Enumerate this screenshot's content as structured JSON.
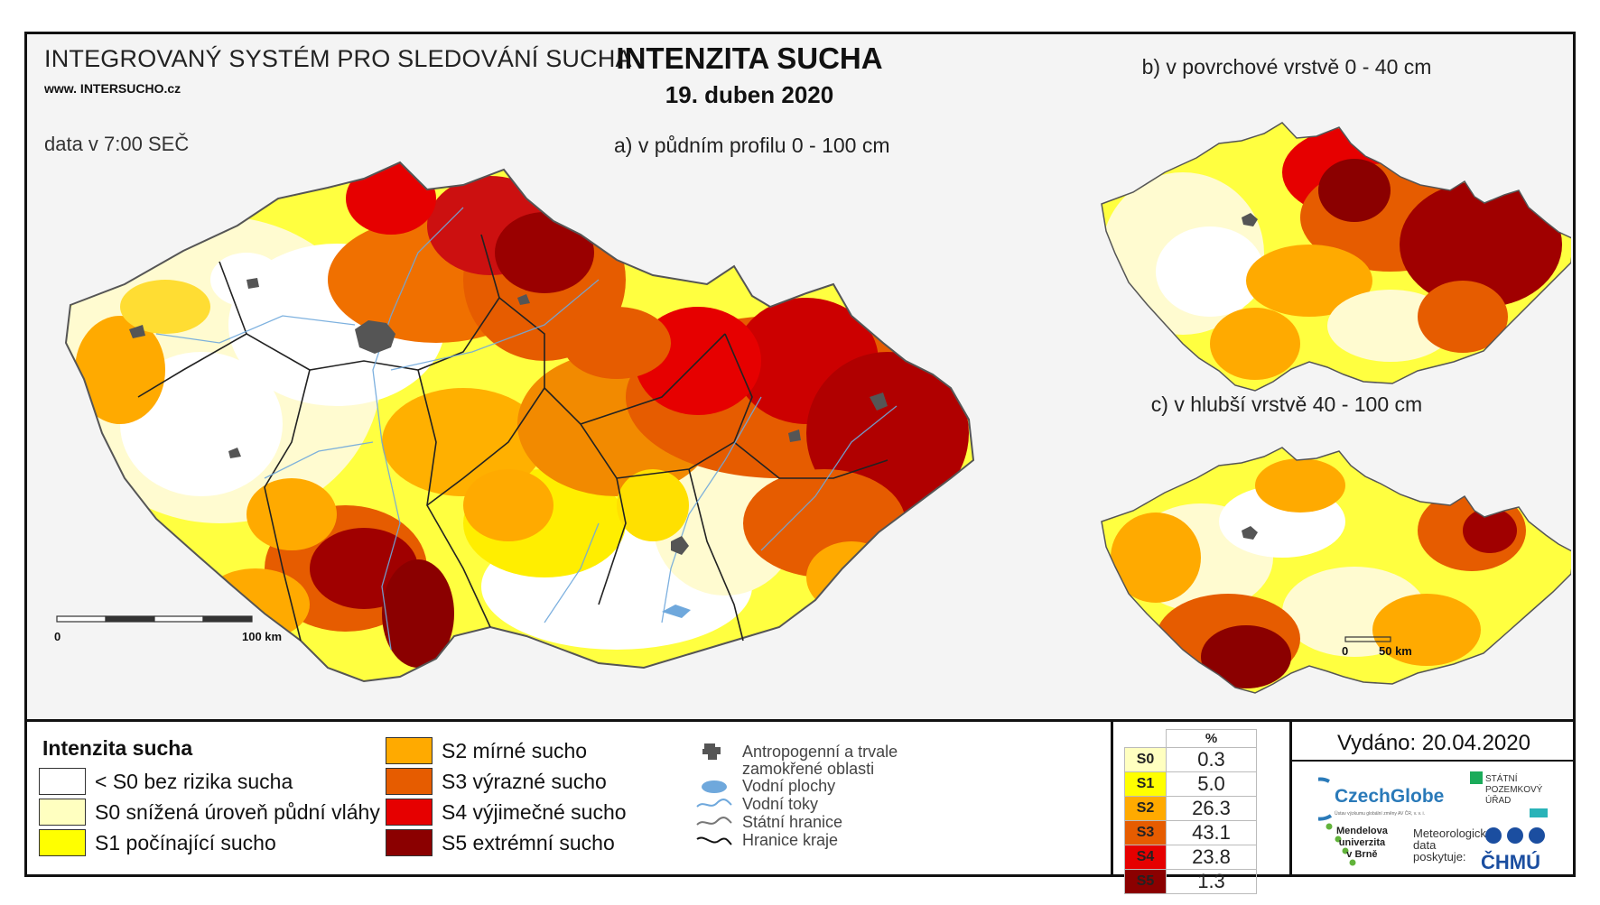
{
  "header": {
    "system_title": "INTEGROVANÝ SYSTÉM PRO SLEDOVÁNÍ SUCHA",
    "website": "www. INTERSUCHO.cz",
    "data_time": "data v 7:00 SEČ",
    "main_title": "INTENZITA SUCHA",
    "date": "19. duben 2020"
  },
  "maps": {
    "a_title": "a) v půdním profilu 0 - 100 cm",
    "b_title": "b) v povrchové vrstvě 0 - 40 cm",
    "c_title": "c) v hlubší vrstvě 40 - 100 cm",
    "scale_main": {
      "start": "0",
      "end": "100 km"
    },
    "scale_small": {
      "start": "0",
      "end": "50 km"
    }
  },
  "legend": {
    "title": "Intenzita sucha",
    "classes": [
      {
        "label": "< S0 bez rizika sucha",
        "color": "#ffffff"
      },
      {
        "label": "S0 snížená úroveň půdní vláhy",
        "color": "#ffffc0"
      },
      {
        "label": "S1 počínající sucho",
        "color": "#ffff00"
      },
      {
        "label": "S2 mírné sucho",
        "color": "#ffaa00"
      },
      {
        "label": "S3 výrazné sucho",
        "color": "#e65c00"
      },
      {
        "label": "S4 výjimečné sucho",
        "color": "#e60000"
      },
      {
        "label": "S5 extrémní sucho",
        "color": "#8b0000"
      }
    ],
    "symbols": [
      {
        "label": "Antropogenní a trvale",
        "icon": "urban-area-icon"
      },
      {
        "label": "zamokřené oblasti",
        "icon": ""
      },
      {
        "label": "Vodní plochy",
        "icon": "water-body-icon"
      },
      {
        "label": "Vodní toky",
        "icon": "river-icon"
      },
      {
        "label": "Státní hranice",
        "icon": "state-border-icon"
      },
      {
        "label": "Hranice kraje",
        "icon": "region-border-icon"
      }
    ]
  },
  "stats": {
    "header": "%",
    "rows": [
      {
        "code": "S0",
        "value": "0.3",
        "color": "#ffffc0"
      },
      {
        "code": "S1",
        "value": "5.0",
        "color": "#ffff00"
      },
      {
        "code": "S2",
        "value": "26.3",
        "color": "#ffaa00"
      },
      {
        "code": "S3",
        "value": "43.1",
        "color": "#e65c00"
      },
      {
        "code": "S4",
        "value": "23.8",
        "color": "#e60000"
      },
      {
        "code": "S5",
        "value": "1.3",
        "color": "#8b0000"
      }
    ]
  },
  "footer": {
    "issued": "Vydáno: 20.04.2020",
    "czechglobe": "CzechGlobe",
    "czechglobe_sub": "Ústav výzkumu globální změny AV ČR, v. v. i.",
    "spu_line1": "STÁTNÍ",
    "spu_line2": "POZEMKOVÝ",
    "spu_line3": "ÚŘAD",
    "mendel_line1": "Mendelova",
    "mendel_line2": "univerzita",
    "mendel_line3": "v Brně",
    "meteo_line1": "Meteorologická",
    "meteo_line2": "data",
    "meteo_line3": "poskytuje:",
    "chmu": "ČHMÚ"
  }
}
